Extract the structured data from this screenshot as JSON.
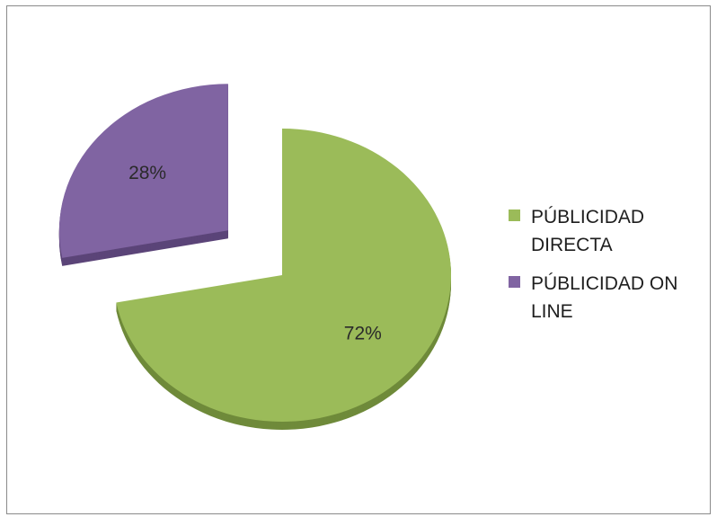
{
  "chart_data": {
    "type": "pie",
    "title": "",
    "slices": [
      {
        "label": "PÚBLICIDAD DIRECTA",
        "value": 72,
        "display": "72%",
        "color": "#9bbb59",
        "shadow": "#6f8a3a",
        "exploded": false
      },
      {
        "label": "PÚBLICIDAD ON LINE",
        "value": 28,
        "display": "28%",
        "color": "#8064a2",
        "shadow": "#5b4478",
        "exploded": true
      }
    ],
    "legend_position": "right",
    "style": "3d-exploded"
  }
}
